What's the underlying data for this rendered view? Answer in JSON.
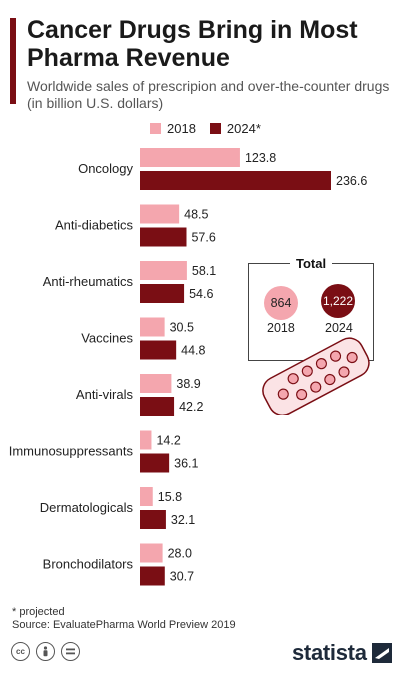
{
  "header": {
    "title": "Cancer Drugs Bring in Most Pharma Revenue",
    "subtitle": "Worldwide sales of prescripion and over-the-counter drugs (in billion U.S. dollars)"
  },
  "legend": {
    "items": [
      {
        "label": "2018",
        "color": "#f4a6ae"
      },
      {
        "label": "2024*",
        "color": "#7a0e14"
      }
    ]
  },
  "chart_data": {
    "type": "bar",
    "orientation": "horizontal",
    "categories": [
      "Oncology",
      "Anti-diabetics",
      "Anti-rheumatics",
      "Vaccines",
      "Anti-virals",
      "Immunosuppressants",
      "Dermatologicals",
      "Bronchodilators"
    ],
    "series": [
      {
        "name": "2018",
        "color": "#f4a6ae",
        "values": [
          123.8,
          48.5,
          58.1,
          30.5,
          38.9,
          14.2,
          15.8,
          28.0
        ],
        "labels": [
          "123.8",
          "48.5",
          "58.1",
          "30.5",
          "38.9",
          "14.2",
          "15.8",
          "28.0"
        ]
      },
      {
        "name": "2024*",
        "color": "#7a0e14",
        "values": [
          236.6,
          57.6,
          54.6,
          44.8,
          42.2,
          36.1,
          32.1,
          30.7
        ],
        "labels": [
          "236.6",
          "57.6",
          "54.6",
          "44.8",
          "42.2",
          "36.1",
          "32.1",
          "30.7"
        ]
      }
    ],
    "title": "Cancer Drugs Bring in Most Pharma Revenue",
    "xlim": [
      0,
      236.6
    ],
    "grid": false,
    "legend_position": "top"
  },
  "total": {
    "title": "Total",
    "items": [
      {
        "value": "864",
        "year": "2018",
        "color": "#f4a6ae"
      },
      {
        "value": "1,222",
        "year": "2024",
        "color": "#7a0e14"
      }
    ]
  },
  "footer": {
    "note": "* projected",
    "source": "Source: EvaluatePharma World Preview 2019",
    "icons": [
      "cc-icon",
      "person-icon",
      "equals-icon"
    ],
    "brand": "statista"
  }
}
